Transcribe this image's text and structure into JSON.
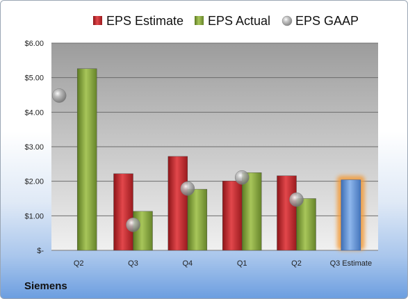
{
  "company": "Siemens",
  "chart_data": {
    "type": "bar",
    "categories": [
      "Q2",
      "Q3",
      "Q4",
      "Q1",
      "Q2",
      "Q3 Estimate"
    ],
    "series": [
      {
        "name": "EPS Estimate",
        "kind": "bar",
        "color": "#c0262b",
        "values": [
          null,
          2.22,
          2.72,
          2.01,
          2.16,
          2.04
        ]
      },
      {
        "name": "EPS Actual",
        "kind": "bar",
        "color": "#8aaa3c",
        "values": [
          5.26,
          1.13,
          1.77,
          2.25,
          1.5,
          null
        ]
      },
      {
        "name": "EPS GAAP",
        "kind": "marker",
        "color": "#a7a7a7",
        "values": [
          4.48,
          0.74,
          1.79,
          2.11,
          1.47,
          null
        ]
      }
    ],
    "highlight": {
      "category_index": 5,
      "color": "#5b8ed6",
      "glow": "#f29b3a"
    },
    "y_ticks": [
      "$-",
      "$1.00",
      "$2.00",
      "$3.00",
      "$4.00",
      "$5.00",
      "$6.00"
    ],
    "ylim": [
      0,
      6
    ],
    "grid": true,
    "legend_position": "top"
  }
}
